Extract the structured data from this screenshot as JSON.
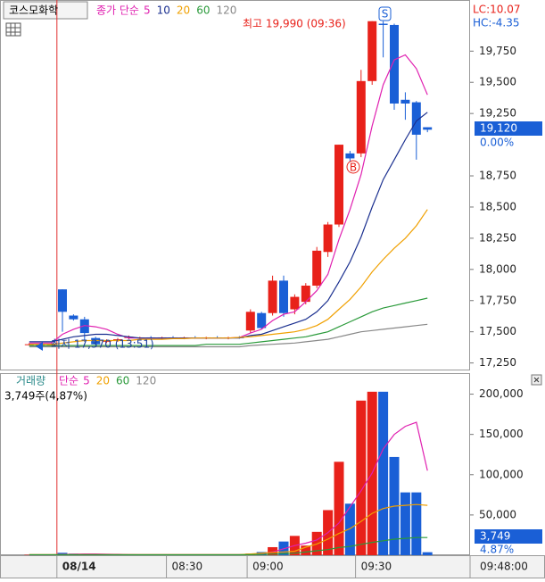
{
  "chart_data": [
    {
      "type": "candlestick",
      "title": "코스모화학",
      "legend_prefix": "종가 단순",
      "info_lc": "LC:10.07",
      "info_hc": "HC:-4.35",
      "annotation_high": "최고 19,990 (09:36)",
      "annotation_low": "최저 17,370 (13:51)",
      "marker_sell": "S",
      "marker_buy": "B",
      "price_box": "19,120",
      "change_box": "0.00%",
      "up_color": "#e8211a",
      "down_color": "#1a5fd6",
      "categories": [
        null,
        null,
        null,
        null,
        null,
        null,
        null,
        null,
        null,
        null,
        null,
        null,
        null,
        null,
        null,
        null,
        null,
        null,
        null,
        null,
        null,
        null,
        null,
        null,
        null,
        null,
        null,
        null,
        null,
        null,
        null,
        null,
        null,
        null,
        null,
        null,
        null
      ],
      "open": [
        17400,
        17400,
        17400,
        17840,
        17630,
        17600,
        17450,
        17420,
        17430,
        17450,
        17450,
        17455,
        17450,
        17455,
        17450,
        17455,
        17450,
        17455,
        17450,
        17455,
        17510,
        17650,
        17650,
        17910,
        17680,
        17740,
        17870,
        18140,
        18360,
        18930,
        18930,
        19510,
        19970,
        19960,
        19360,
        19340,
        19140
      ],
      "high": [
        17410,
        17410,
        17410,
        17840,
        17640,
        17620,
        17460,
        17440,
        17450,
        17470,
        17460,
        17465,
        17460,
        17465,
        17460,
        17465,
        17460,
        17465,
        17460,
        17465,
        17680,
        17660,
        17950,
        17950,
        17800,
        17890,
        18180,
        18380,
        19000,
        18950,
        19600,
        19990,
        19990,
        19970,
        19420,
        19350,
        19140
      ],
      "low": [
        17390,
        17390,
        17390,
        17500,
        17590,
        17420,
        17380,
        17410,
        17420,
        17440,
        17440,
        17445,
        17440,
        17445,
        17440,
        17445,
        17440,
        17445,
        17440,
        17445,
        17490,
        17520,
        17630,
        17620,
        17640,
        17720,
        17850,
        18100,
        18340,
        18800,
        18900,
        19480,
        19700,
        19280,
        19200,
        18880,
        19100
      ],
      "close": [
        17400,
        17400,
        17400,
        17660,
        17600,
        17490,
        17400,
        17430,
        17440,
        17460,
        17455,
        17450,
        17455,
        17450,
        17455,
        17450,
        17455,
        17450,
        17455,
        17450,
        17660,
        17530,
        17910,
        17650,
        17780,
        17870,
        18150,
        18360,
        19000,
        18890,
        19510,
        19990,
        19960,
        19330,
        19330,
        19080,
        19120
      ],
      "series": [
        {
          "name": "5",
          "color": "#e020b0",
          "values": [
            17410,
            17410,
            17410,
            17480,
            17520,
            17550,
            17540,
            17520,
            17480,
            17450,
            17450,
            17450,
            17450,
            17450,
            17450,
            17450,
            17450,
            17450,
            17450,
            17455,
            17490,
            17520,
            17590,
            17640,
            17660,
            17740,
            17830,
            17960,
            18240,
            18480,
            18760,
            19150,
            19480,
            19680,
            19720,
            19610,
            19400
          ]
        },
        {
          "name": "10",
          "color": "#1a2f8f",
          "values": [
            17420,
            17420,
            17420,
            17440,
            17460,
            17470,
            17480,
            17480,
            17470,
            17460,
            17450,
            17450,
            17450,
            17450,
            17450,
            17450,
            17450,
            17450,
            17450,
            17450,
            17470,
            17480,
            17510,
            17540,
            17570,
            17600,
            17660,
            17750,
            17900,
            18060,
            18260,
            18500,
            18720,
            18880,
            19040,
            19190,
            19260
          ]
        },
        {
          "name": "20",
          "color": "#f0a000",
          "values": [
            17400,
            17400,
            17400,
            17410,
            17420,
            17430,
            17430,
            17430,
            17430,
            17430,
            17440,
            17440,
            17440,
            17445,
            17445,
            17450,
            17450,
            17450,
            17450,
            17455,
            17460,
            17470,
            17480,
            17490,
            17500,
            17520,
            17550,
            17600,
            17680,
            17760,
            17860,
            17980,
            18080,
            18170,
            18250,
            18350,
            18480
          ]
        },
        {
          "name": "60",
          "color": "#2a9a3a",
          "values": [
            17390,
            17390,
            17390,
            17390,
            17390,
            17390,
            17390,
            17390,
            17390,
            17390,
            17390,
            17390,
            17390,
            17390,
            17390,
            17390,
            17400,
            17400,
            17400,
            17400,
            17410,
            17420,
            17430,
            17440,
            17450,
            17460,
            17480,
            17500,
            17540,
            17580,
            17620,
            17660,
            17690,
            17710,
            17730,
            17750,
            17770
          ]
        },
        {
          "name": "120",
          "color": "#888888",
          "values": [
            17380,
            17380,
            17380,
            17380,
            17380,
            17380,
            17380,
            17380,
            17380,
            17380,
            17380,
            17380,
            17380,
            17380,
            17380,
            17380,
            17380,
            17380,
            17380,
            17380,
            17390,
            17395,
            17400,
            17405,
            17410,
            17420,
            17430,
            17440,
            17460,
            17480,
            17500,
            17510,
            17520,
            17530,
            17540,
            17550,
            17560
          ]
        }
      ],
      "ylim": [
        17190,
        20160
      ],
      "yticks": [
        {
          "value": 17250,
          "label": "17,250"
        },
        {
          "value": 17500,
          "label": "17,500"
        },
        {
          "value": 17750,
          "label": "17,750"
        },
        {
          "value": 18000,
          "label": "18,000"
        },
        {
          "value": 18250,
          "label": "18,250"
        },
        {
          "value": 18500,
          "label": "18,500"
        },
        {
          "value": 18750,
          "label": "18,750"
        },
        {
          "value": 19250,
          "label": "19,250"
        },
        {
          "value": 19500,
          "label": "19,500"
        },
        {
          "value": 19750,
          "label": "19,750"
        }
      ]
    },
    {
      "type": "bar",
      "title": "거래량",
      "legend_prefix": "단순",
      "info": "3,749주(4,87%)",
      "volume_box": "3,749",
      "ratio_box": "4.87%",
      "values": [
        500,
        500,
        500,
        3000,
        2000,
        1500,
        1000,
        800,
        800,
        800,
        800,
        800,
        800,
        800,
        800,
        800,
        800,
        800,
        800,
        800,
        2000,
        4000,
        10000,
        17000,
        24000,
        12000,
        29000,
        56000,
        116000,
        64000,
        192000,
        203000,
        203000,
        122000,
        78000,
        78000,
        3749
      ],
      "series": [
        {
          "name": "5",
          "color": "#e020b0",
          "values": [
            500,
            500,
            500,
            1000,
            1300,
            1500,
            1600,
            1300,
            1100,
            900,
            800,
            800,
            800,
            800,
            800,
            800,
            800,
            800,
            800,
            800,
            1000,
            2000,
            4000,
            8000,
            12000,
            15000,
            19000,
            28000,
            40000,
            60000,
            80000,
            102000,
            132000,
            150000,
            160000,
            165000,
            105000
          ]
        },
        {
          "name": "20",
          "color": "#f0a000",
          "values": [
            800,
            800,
            800,
            800,
            800,
            800,
            800,
            800,
            800,
            800,
            800,
            800,
            800,
            800,
            800,
            800,
            800,
            800,
            800,
            800,
            1500,
            2500,
            3500,
            4000,
            5000,
            10000,
            14000,
            20000,
            27000,
            33000,
            42000,
            52000,
            58000,
            61000,
            62000,
            63000,
            62000
          ]
        },
        {
          "name": "60",
          "color": "#2a9a3a",
          "values": [
            500,
            500,
            500,
            500,
            500,
            500,
            500,
            500,
            500,
            500,
            500,
            500,
            500,
            500,
            500,
            500,
            500,
            500,
            500,
            500,
            700,
            1000,
            1400,
            1800,
            2500,
            4000,
            5500,
            7000,
            9500,
            11000,
            13500,
            16000,
            18000,
            20000,
            21000,
            22000,
            22000
          ]
        },
        {
          "name": "120",
          "color": "#888888",
          "values": [
            null,
            null,
            null,
            null,
            null,
            null,
            null,
            null,
            null,
            null,
            null,
            null,
            null,
            null,
            null,
            null,
            null,
            null,
            null,
            null,
            null,
            null,
            null,
            null,
            null,
            null,
            null,
            null,
            null,
            null,
            null,
            null,
            null,
            null,
            null,
            null,
            null
          ]
        }
      ],
      "ylim": [
        0,
        225000
      ],
      "yticks": [
        {
          "value": 50000,
          "label": "50,000"
        },
        {
          "value": 100000,
          "label": "100,000"
        },
        {
          "value": 150000,
          "label": "150,000"
        },
        {
          "value": 200000,
          "label": "200,000"
        }
      ],
      "xticks": [
        {
          "value": 2.5,
          "label": "08/14"
        },
        {
          "value": 12.4,
          "label": "08:30"
        },
        {
          "value": 19.7,
          "label": "09:00"
        },
        {
          "value": 29.5,
          "label": "09:30"
        }
      ],
      "x_end_label": "09:48:00"
    }
  ]
}
